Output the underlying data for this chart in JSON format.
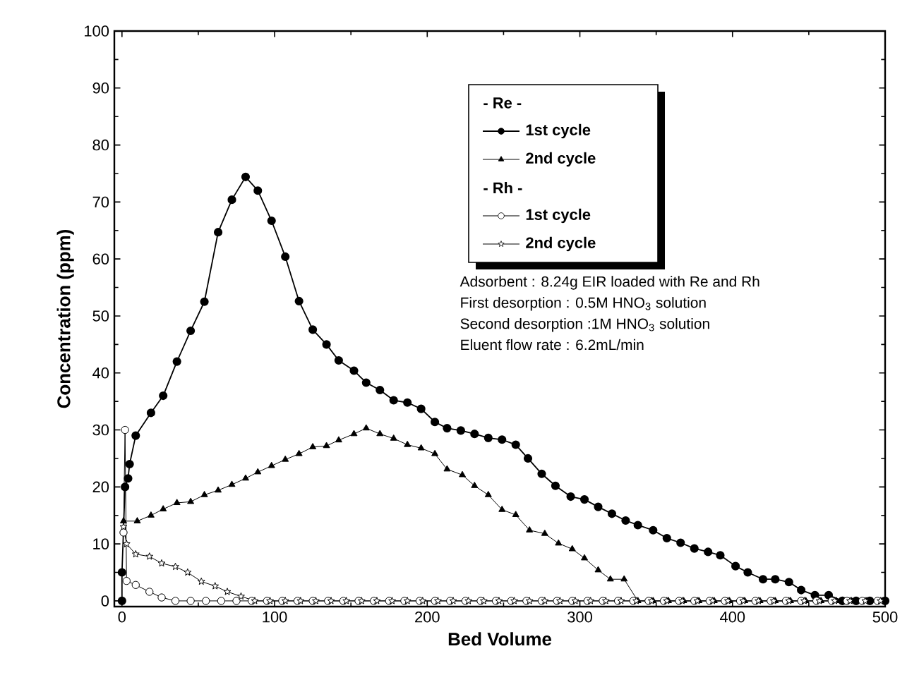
{
  "chart_data": {
    "type": "line",
    "xlabel": "Bed Volume",
    "ylabel": "Concentration (ppm)",
    "xlim": [
      -5,
      500
    ],
    "ylim": [
      -1,
      100
    ],
    "xticks": [
      0,
      100,
      200,
      300,
      400,
      500
    ],
    "yticks": [
      0,
      10,
      20,
      30,
      40,
      50,
      60,
      70,
      80,
      90,
      100
    ],
    "legend": "top",
    "annotations": [
      "- Re -",
      "- Rh -",
      "Adsorbent : 8.24g EIR loaded with Re and Rh",
      "First desorption : 0.5M HNO$_{3}$ solution",
      "Second desorption :1M HNO$_{3}$ solution",
      "Eluent flow rate : 6.2mL/min"
    ],
    "series": [
      {
        "name": "1st cycle",
        "color": "#000000",
        "marker": "circle",
        "x": [
          0,
          0,
          2,
          4,
          5,
          9,
          19,
          27,
          36,
          45,
          54,
          63,
          72,
          81,
          89,
          98,
          107,
          116,
          125,
          134,
          142,
          152,
          160,
          169,
          178,
          187,
          196,
          205,
          213,
          222,
          231,
          240,
          249,
          258,
          266,
          275,
          284,
          294,
          303,
          312,
          321,
          330,
          338,
          348,
          357,
          366,
          375,
          384,
          392,
          402,
          410,
          420,
          428,
          437,
          445,
          454,
          463,
          472,
          481,
          490,
          500
        ],
        "values": [
          0,
          5,
          20,
          21.5,
          24,
          29,
          33,
          36,
          42,
          47.4,
          52.5,
          64.7,
          70.4,
          74.4,
          72,
          66.7,
          60.4,
          52.6,
          47.6,
          45,
          42.2,
          40.4,
          38.3,
          37,
          35.2,
          34.8,
          33.7,
          31.4,
          30.3,
          29.9,
          29.3,
          28.6,
          28.3,
          27.4,
          25,
          22.3,
          20.2,
          18.3,
          17.8,
          16.5,
          15.3,
          14.1,
          13.3,
          12.4,
          11,
          10.2,
          9.2,
          8.6,
          8,
          6.1,
          5,
          3.8,
          3.8,
          3.3,
          1.9,
          1,
          1,
          0,
          0,
          0,
          0
        ]
      },
      {
        "name": "2nd cycle",
        "color": "#000000",
        "marker": "triangle",
        "x": [
          1,
          10,
          19,
          27,
          36,
          45,
          54,
          63,
          72,
          81,
          89,
          98,
          107,
          116,
          125,
          134,
          142,
          152,
          160,
          169,
          178,
          187,
          196,
          205,
          213,
          223,
          231,
          240,
          249,
          258,
          267,
          277,
          286,
          295,
          303,
          312,
          320,
          329,
          338,
          348,
          358,
          368,
          378,
          388,
          398,
          408,
          418,
          428,
          438,
          448,
          458,
          468,
          478,
          488,
          498
        ],
        "values": [
          14,
          14,
          15,
          16.1,
          17.2,
          17.4,
          18.6,
          19.4,
          20.4,
          21.5,
          22.6,
          23.7,
          24.8,
          25.8,
          27,
          27.2,
          28.2,
          29.3,
          30.3,
          29.3,
          28.5,
          27.4,
          26.8,
          25.8,
          23.1,
          22.1,
          20.2,
          18.6,
          16,
          15.1,
          12.4,
          11.8,
          10.1,
          9.1,
          7.5,
          5.4,
          3.8,
          3.8,
          0,
          0,
          0,
          0,
          0,
          0,
          0,
          0,
          0,
          0,
          0,
          0,
          0,
          0,
          0,
          0,
          0
        ]
      },
      {
        "name": "1st cycle",
        "color": "#000000",
        "marker": "circle",
        "x": [
          1,
          2,
          3,
          9,
          18,
          26,
          35,
          45,
          55,
          65,
          75,
          85,
          95,
          105,
          115,
          125,
          135,
          145,
          155,
          165,
          175,
          185,
          195,
          205,
          215,
          225,
          235,
          245,
          255,
          265,
          275,
          285,
          295,
          305,
          315,
          325,
          335,
          345,
          355,
          365,
          375,
          385,
          395,
          405,
          415,
          425,
          435,
          445,
          455,
          465,
          475,
          485,
          495
        ],
        "values": [
          12,
          30,
          3.5,
          2.8,
          1.6,
          0.6,
          0,
          0,
          0,
          0,
          0,
          0,
          0,
          0,
          0,
          0,
          0,
          0,
          0,
          0,
          0,
          0,
          0,
          0,
          0,
          0,
          0,
          0,
          0,
          0,
          0,
          0,
          0,
          0,
          0,
          0,
          0,
          0,
          0,
          0,
          0,
          0,
          0,
          0,
          0,
          0,
          0,
          0,
          0,
          0,
          0,
          0,
          0
        ]
      },
      {
        "name": "2nd cycle",
        "color": "#000000",
        "marker": "star",
        "x": [
          1,
          3,
          9,
          18,
          26,
          35,
          43,
          52,
          61,
          69,
          78,
          87,
          97,
          107,
          117,
          127,
          137,
          147,
          157,
          167,
          177,
          187,
          197,
          207,
          217,
          227,
          237,
          247,
          257,
          267,
          277,
          287,
          297,
          307,
          317,
          327,
          337,
          347,
          357,
          367,
          377,
          387,
          397,
          407,
          417,
          427,
          437,
          447,
          457,
          467,
          477,
          487,
          497
        ],
        "values": [
          13,
          10,
          8.2,
          7.8,
          6.6,
          6,
          5,
          3.4,
          2.6,
          1.6,
          0.8,
          0,
          0,
          0,
          0,
          0,
          0,
          0,
          0,
          0,
          0,
          0,
          0,
          0,
          0,
          0,
          0,
          0,
          0,
          0,
          0,
          0,
          0,
          0,
          0,
          0,
          0,
          0,
          0,
          0,
          0,
          0,
          0,
          0,
          0,
          0,
          0,
          0,
          0,
          0,
          0,
          0,
          0
        ]
      }
    ]
  }
}
